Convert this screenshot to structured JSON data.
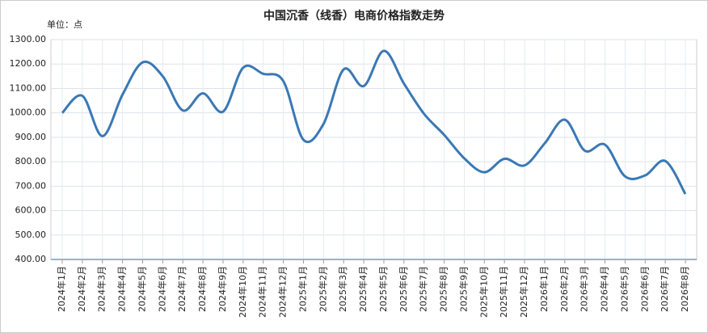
{
  "chart_data": {
    "type": "line",
    "title": "中国沉香（线香）电商价格指数走势",
    "unit_label": "单位：点",
    "categories": [
      "2024年1月",
      "2024年2月",
      "2024年3月",
      "2024年4月",
      "2024年5月",
      "2024年6月",
      "2024年7月",
      "2024年8月",
      "2024年9月",
      "2024年10月",
      "2024年11月",
      "2024年12月",
      "2025年1月",
      "2025年2月",
      "2025年3月",
      "2025年4月",
      "2025年5月",
      "2025年6月",
      "2025年7月",
      "2025年8月",
      "2025年9月",
      "2025年10月",
      "2025年11月",
      "2025年12月",
      "2026年1月",
      "2026年2月",
      "2026年3月",
      "2026年4月",
      "2026年5月",
      "2026年6月",
      "2026年7月",
      "2026年8月"
    ],
    "values": [
      1000,
      1070,
      905,
      1075,
      1207,
      1150,
      1010,
      1080,
      1005,
      1185,
      1160,
      1130,
      890,
      955,
      1178,
      1110,
      1254,
      1120,
      996,
      910,
      814,
      757,
      812,
      785,
      875,
      972,
      845,
      870,
      740,
      744,
      803,
      668
    ],
    "color": "#3a78b5",
    "ylim": [
      400,
      1300
    ],
    "yticks": [
      {
        "value": 400,
        "label": "400.00"
      },
      {
        "value": 500,
        "label": "500.00"
      },
      {
        "value": 600,
        "label": "600.00"
      },
      {
        "value": 700,
        "label": "700.00"
      },
      {
        "value": 800,
        "label": "800.00"
      },
      {
        "value": 900,
        "label": "900.00"
      },
      {
        "value": 1000,
        "label": "1000.00"
      },
      {
        "value": 1100,
        "label": "1100.00"
      },
      {
        "value": 1200,
        "label": "1200.00"
      },
      {
        "value": 1300,
        "label": "1300.00"
      }
    ],
    "grid": true
  }
}
